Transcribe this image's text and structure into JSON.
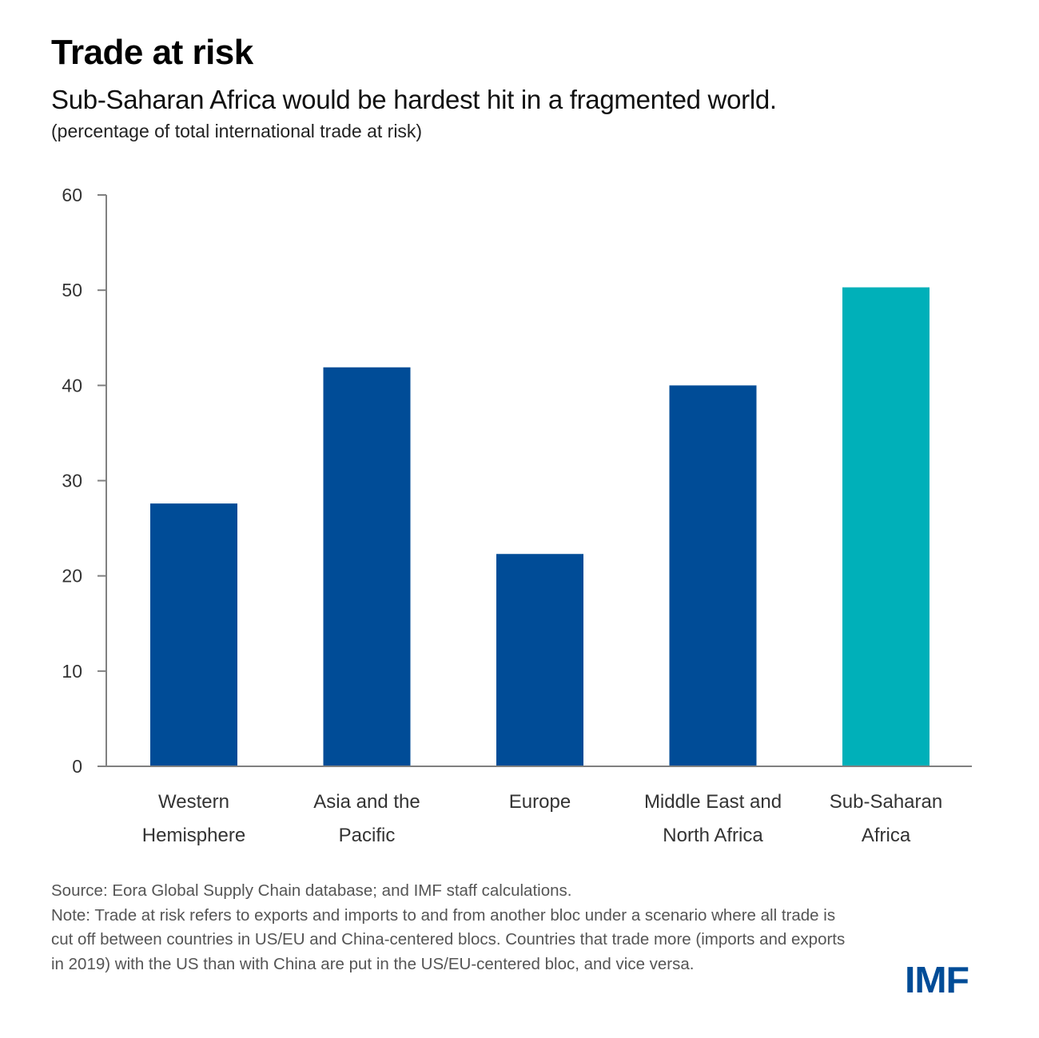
{
  "header": {
    "title": "Trade at risk",
    "subtitle": "Sub-Saharan Africa would be hardest hit in a fragmented world.",
    "units": "(percentage of total international trade at risk)"
  },
  "chart_data": {
    "type": "bar",
    "title": "Trade at risk",
    "subtitle": "Sub-Saharan Africa would be hardest hit in a fragmented world.",
    "xlabel": "",
    "ylabel": "percentage of total international trade at risk",
    "categories": [
      [
        "Western",
        "Hemisphere"
      ],
      [
        "Asia and the",
        "Pacific"
      ],
      [
        "Europe"
      ],
      [
        "Middle East and",
        "North Africa"
      ],
      [
        "Sub-Saharan",
        "Africa"
      ]
    ],
    "values": [
      27.6,
      41.9,
      22.3,
      40.0,
      50.3
    ],
    "colors": [
      "#004c97",
      "#004c97",
      "#004c97",
      "#004c97",
      "#00b0b9"
    ],
    "ylim": [
      0,
      60
    ],
    "yticks": [
      0,
      10,
      20,
      30,
      40,
      50,
      60
    ],
    "grid": false,
    "legend": "none"
  },
  "footer": {
    "source": "Source: Eora Global Supply Chain database; and IMF staff calculations.",
    "note": "Note: Trade at risk refers to exports and imports to and from another bloc under a scenario where all trade is cut off between countries in US/EU and China-centered blocs. Countries that trade more (imports and exports in 2019) with the US than with China are put in the US/EU-centered bloc, and vice versa.",
    "logo": "IMF"
  },
  "colors": {
    "primary_bar": "#004c97",
    "highlight_bar": "#00b0b9",
    "axis": "#808080",
    "logo": "#004c97"
  }
}
